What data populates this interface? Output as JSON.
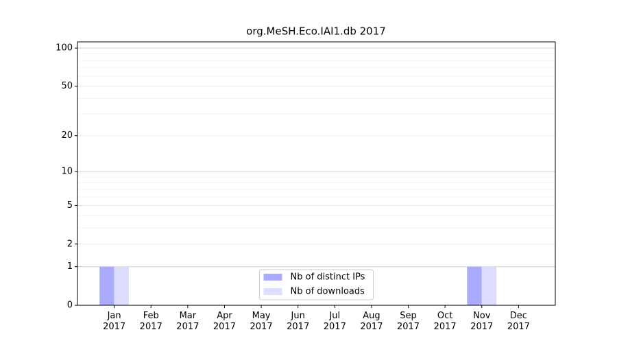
{
  "chart_data": {
    "type": "bar",
    "title": "org.MeSH.Eco.IAI1.db 2017",
    "categories": [
      "Jan\n2017",
      "Feb\n2017",
      "Mar\n2017",
      "Apr\n2017",
      "May\n2017",
      "Jun\n2017",
      "Jul\n2017",
      "Aug\n2017",
      "Sep\n2017",
      "Oct\n2017",
      "Nov\n2017",
      "Dec\n2017"
    ],
    "series": [
      {
        "name": "Nb of distinct IPs",
        "color": "#aaaaff",
        "values": [
          1,
          0,
          0,
          0,
          0,
          0,
          0,
          0,
          0,
          0,
          1,
          0
        ]
      },
      {
        "name": "Nb of downloads",
        "color": "#ddddff",
        "values": [
          1,
          0,
          0,
          0,
          0,
          0,
          0,
          0,
          0,
          0,
          1,
          0
        ]
      }
    ],
    "yscale": "log1p",
    "ylim": [
      0,
      112
    ],
    "yticks": [
      0,
      1,
      2,
      5,
      10,
      20,
      50,
      100
    ],
    "yminorticks": [
      3,
      4,
      6,
      7,
      8,
      9,
      30,
      40,
      60,
      70,
      80,
      90
    ],
    "grid": true,
    "legend": "lower center"
  }
}
